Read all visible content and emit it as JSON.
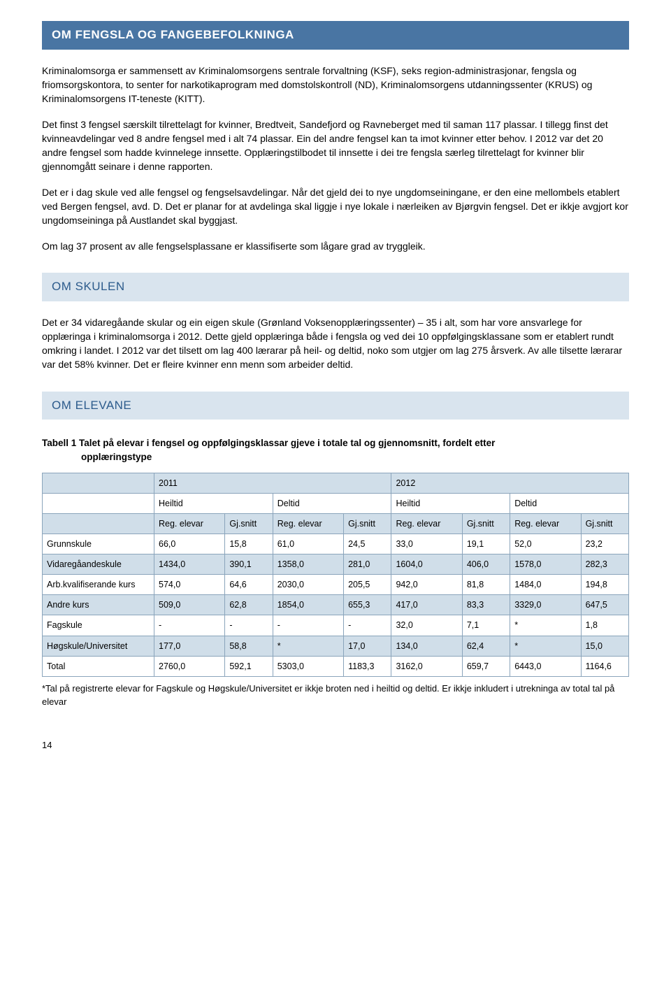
{
  "section1": {
    "title": "OM FENGSLA OG FANGEBEFOLKNINGA",
    "p1": "Kriminalomsorga er sammensett av Kriminalomsorgens sentrale forvaltning (KSF), seks region-administrasjonar, fengsla og friomsorgskontora, to senter for narkotikaprogram med domstolskontroll (ND), Kriminalomsorgens utdanningssenter (KRUS) og Kriminalomsorgens IT-teneste (KITT).",
    "p2": "Det finst 3 fengsel særskilt tilrettelagt for kvinner, Bredtveit, Sandefjord og Ravneberget med til saman 117 plassar. I tillegg finst det kvinneavdelingar ved 8 andre fengsel med i alt 74 plassar. Ein del andre fengsel kan ta imot kvinner etter behov. I 2012 var det 20 andre fengsel som hadde kvinnelege innsette. Opplæringstilbodet til innsette i dei tre fengsla særleg tilrettelagt for kvinner blir gjennomgått seinare i denne rapporten.",
    "p3": "Det er i dag skule ved alle fengsel og fengselsavdelingar. Når det gjeld dei to nye ungdomseiningane, er den eine mellombels etablert ved Bergen fengsel, avd. D. Det er planar for at avdelinga skal liggje i nye lokale i nærleiken av Bjørgvin fengsel. Det er ikkje avgjort kor ungdomseininga på Austlandet skal byggjast.",
    "p4": "Om lag 37 prosent av alle fengselsplassane er klassifiserte som lågare grad av tryggleik."
  },
  "section2": {
    "title": "OM SKULEN",
    "p1": "Det er 34 vidaregåande skular og ein eigen skule (Grønland Voksenopplæringssenter) – 35 i alt, som har vore ansvarlege for opplæringa i kriminalomsorga i 2012. Dette gjeld opplæringa både i fengsla og ved dei 10 oppfølgingsklassane som er etablert rundt omkring i landet. I 2012 var det tilsett om lag 400 lærarar på heil- og deltid, noko som utgjer om lag 275 årsverk. Av alle tilsette lærarar var det 58% kvinner. Det er fleire kvinner enn menn som arbeider deltid."
  },
  "section3": {
    "title": "OM ELEVANE",
    "tableTitle1": "Tabell 1 Talet på elevar i fengsel og oppfølgingsklassar gjeve i totale tal og gjennomsnitt, fordelt etter",
    "tableTitle2": "opplæringstype",
    "years": [
      "2011",
      "2012"
    ],
    "subheads": [
      "Heiltid",
      "Deltid",
      "Heiltid",
      "Deltid"
    ],
    "colheads": [
      "Reg. elevar",
      "Gj.snitt",
      "Reg. elevar",
      "Gj.snitt",
      "Reg. elevar",
      "Gj.snitt",
      "Reg. elevar",
      "Gj.snitt"
    ],
    "rows": [
      {
        "label": "Grunnskule",
        "cells": [
          "66,0",
          "15,8",
          "61,0",
          "24,5",
          "33,0",
          "19,1",
          "52,0",
          "23,2"
        ]
      },
      {
        "label": "Vidaregåandeskule",
        "cells": [
          "1434,0",
          "390,1",
          "1358,0",
          "281,0",
          "1604,0",
          "406,0",
          "1578,0",
          "282,3"
        ]
      },
      {
        "label": "Arb.kvalifiserande kurs",
        "cells": [
          "574,0",
          "64,6",
          "2030,0",
          "205,5",
          "942,0",
          "81,8",
          "1484,0",
          "194,8"
        ]
      },
      {
        "label": "Andre kurs",
        "cells": [
          "509,0",
          "62,8",
          "1854,0",
          "655,3",
          "417,0",
          "83,3",
          "3329,0",
          "647,5"
        ]
      },
      {
        "label": "Fagskule",
        "cells": [
          "-",
          "-",
          "-",
          "-",
          "32,0",
          "7,1",
          "*",
          "1,8"
        ]
      },
      {
        "label": "Høgskule/Universitet",
        "cells": [
          "177,0",
          "58,8",
          "*",
          "17,0",
          "134,0",
          "62,4",
          "*",
          "15,0"
        ]
      },
      {
        "label": "Total",
        "cells": [
          "2760,0",
          "592,1",
          "5303,0",
          "1183,3",
          "3162,0",
          "659,7",
          "6443,0",
          "1164,6"
        ]
      }
    ],
    "footnote": "*Tal på registrerte elevar for Fagskule og Høgskule/Universitet er ikkje broten ned i heiltid og deltid. Er ikkje inkludert i utrekninga av total tal på elevar"
  },
  "pageNumber": "14",
  "colors": {
    "titleBg": "#4975a3",
    "boxBg": "#d9e4ee",
    "boxText": "#2c5b8c",
    "rowOddBg": "#d0dee9",
    "border": "#8aa4bb"
  }
}
